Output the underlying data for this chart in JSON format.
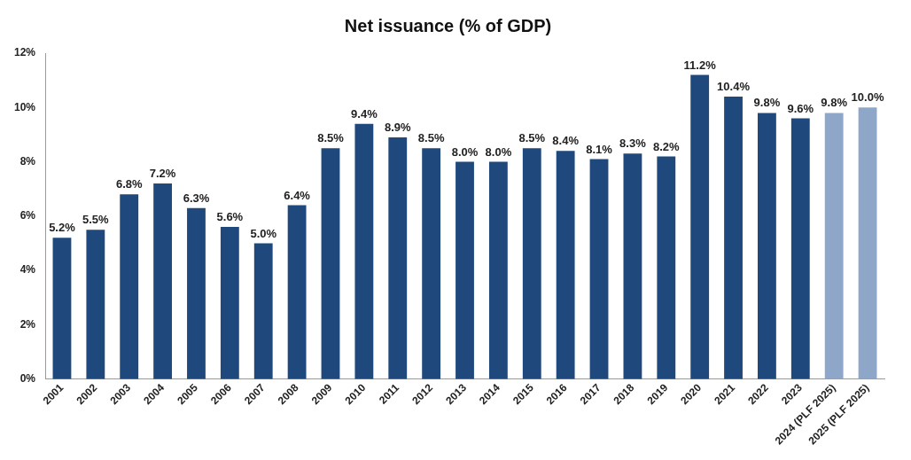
{
  "chart_data": {
    "type": "bar",
    "title": "Net issuance (% of GDP)",
    "categories": [
      "2001",
      "2002",
      "2003",
      "2004",
      "2005",
      "2006",
      "2007",
      "2008",
      "2009",
      "2010",
      "2011",
      "2012",
      "2013",
      "2014",
      "2015",
      "2016",
      "2017",
      "2018",
      "2019",
      "2020",
      "2021",
      "2022",
      "2023",
      "2024 (PLF 2025)",
      "2025 (PLF 2025)"
    ],
    "values": [
      5.2,
      5.5,
      6.8,
      7.2,
      6.3,
      5.6,
      5.0,
      6.4,
      8.5,
      9.4,
      8.9,
      8.5,
      8.0,
      8.0,
      8.5,
      8.4,
      8.1,
      8.3,
      8.2,
      11.2,
      10.4,
      9.8,
      9.6,
      9.8,
      10.0
    ],
    "value_labels": [
      "5.2%",
      "5.5%",
      "6.8%",
      "7.2%",
      "6.3%",
      "5.6%",
      "5.0%",
      "6.4%",
      "8.5%",
      "9.4%",
      "8.9%",
      "8.5%",
      "8.0%",
      "8.0%",
      "8.5%",
      "8.4%",
      "8.1%",
      "8.3%",
      "8.2%",
      "11.2%",
      "10.4%",
      "9.8%",
      "9.6%",
      "9.8%",
      "10.0%"
    ],
    "colors": [
      "#1f497d",
      "#1f497d",
      "#1f497d",
      "#1f497d",
      "#1f497d",
      "#1f497d",
      "#1f497d",
      "#1f497d",
      "#1f497d",
      "#1f497d",
      "#1f497d",
      "#1f497d",
      "#1f497d",
      "#1f497d",
      "#1f497d",
      "#1f497d",
      "#1f497d",
      "#1f497d",
      "#1f497d",
      "#1f497d",
      "#1f497d",
      "#1f497d",
      "#1f497d",
      "#8ea6c8",
      "#8ea6c8"
    ],
    "ylim": [
      0,
      12
    ],
    "yticks": [
      {
        "value": 0,
        "label": "0%"
      },
      {
        "value": 2,
        "label": "2%"
      },
      {
        "value": 4,
        "label": "4%"
      },
      {
        "value": 6,
        "label": "6%"
      },
      {
        "value": 8,
        "label": "8%"
      },
      {
        "value": 10,
        "label": "10%"
      },
      {
        "value": 12,
        "label": "12%"
      }
    ],
    "grid": false,
    "legend": false
  }
}
